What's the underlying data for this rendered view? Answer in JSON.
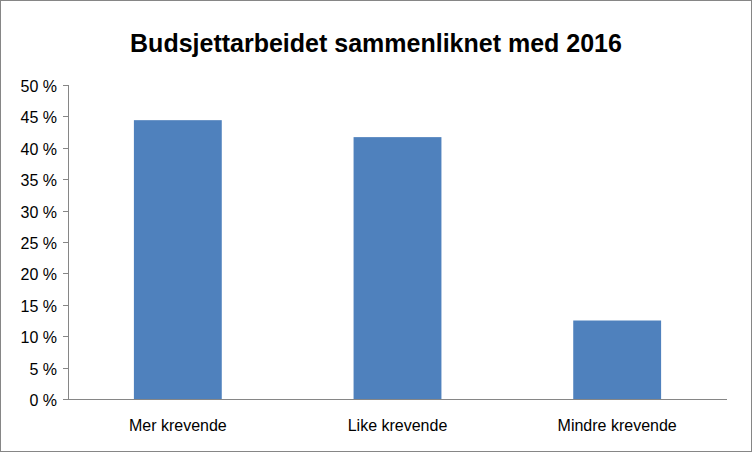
{
  "chart_data": {
    "type": "bar",
    "title": "Budsjettarbeidet sammenliknet med 2016",
    "categories": [
      "Mer krevende",
      "Like krevende",
      "Mindre krevende"
    ],
    "values": [
      44.4,
      41.7,
      12.5
    ],
    "color": "#4f81bd",
    "ylim": [
      0,
      50
    ],
    "yticks": [
      {
        "value": 0,
        "label": "0 %"
      },
      {
        "value": 5,
        "label": "5 %"
      },
      {
        "value": 10,
        "label": "10 %"
      },
      {
        "value": 15,
        "label": "15 %"
      },
      {
        "value": 20,
        "label": "20 %"
      },
      {
        "value": 25,
        "label": "25 %"
      },
      {
        "value": 30,
        "label": "30 %"
      },
      {
        "value": 35,
        "label": "35 %"
      },
      {
        "value": 40,
        "label": "40 %"
      },
      {
        "value": 45,
        "label": "45 %"
      },
      {
        "value": 50,
        "label": "50 %"
      }
    ],
    "grid": false
  }
}
